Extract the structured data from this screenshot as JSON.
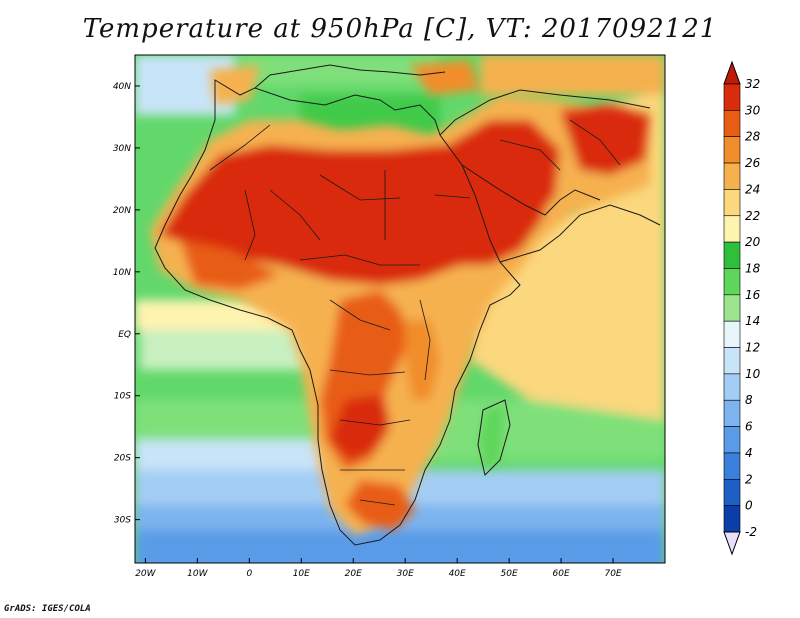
{
  "title": "Temperature at 950hPa [C], VT: 2017092121",
  "credit": "GrADS: IGES/COLA",
  "map": {
    "variable": "Temperature at 950hPa",
    "units": "C",
    "valid_time": "2017092121",
    "lon_range": [
      -22,
      80
    ],
    "lat_range": [
      -37,
      45
    ],
    "lon_ticks": [
      "20W",
      "10W",
      "0",
      "10E",
      "20E",
      "30E",
      "40E",
      "50E",
      "60E",
      "70E"
    ],
    "lat_ticks": [
      "40N",
      "30N",
      "20N",
      "10N",
      "EQ",
      "10S",
      "20S",
      "30S"
    ]
  },
  "colorbar": {
    "levels": [
      "-2",
      "0",
      "2",
      "4",
      "6",
      "8",
      "10",
      "12",
      "14",
      "16",
      "18",
      "20",
      "22",
      "24",
      "26",
      "28",
      "30",
      "32"
    ],
    "colors": [
      "#0a0a78",
      "#0b3ea8",
      "#1d5fc4",
      "#3a80dd",
      "#5a9be8",
      "#7db4ef",
      "#a3cdf4",
      "#c8e4f8",
      "#e8f6fb",
      "#9ce58e",
      "#5ed65c",
      "#2fbf3a",
      "#fff3b0",
      "#fbd77e",
      "#f6b14f",
      "#f18d2b",
      "#e85d14",
      "#d92c0c",
      "#c01b06"
    ]
  }
}
